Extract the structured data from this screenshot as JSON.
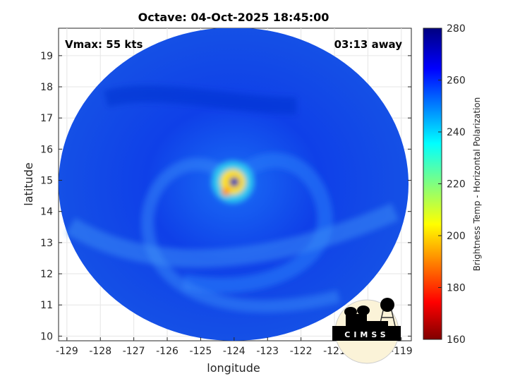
{
  "chart_data": {
    "type": "heatmap",
    "title": "Octave: 04-Oct-2025 18:45:00",
    "xlabel": "longitude",
    "ylabel": "latitude",
    "xlim": [
      -129.25,
      -118.7
    ],
    "ylim": [
      9.85,
      19.88
    ],
    "xticks": [
      -129,
      -128,
      -127,
      -126,
      -125,
      -124,
      -123,
      -122,
      -121,
      -120,
      -119
    ],
    "yticks": [
      10,
      11,
      12,
      13,
      14,
      15,
      16,
      17,
      18,
      19
    ],
    "grid": true,
    "storm_center": {
      "lon": -124.0,
      "lat": 15.1
    },
    "annotations": {
      "vmax": "Vmax: 55 kts",
      "time_away": "03:13 away"
    },
    "colorbar": {
      "label": "Brightness Temp - Horizontal Polarization",
      "range": [
        160,
        280
      ],
      "ticks": [
        160,
        180,
        200,
        220,
        240,
        260,
        280
      ],
      "colormap": "jet"
    },
    "logo": "CIMSS"
  }
}
